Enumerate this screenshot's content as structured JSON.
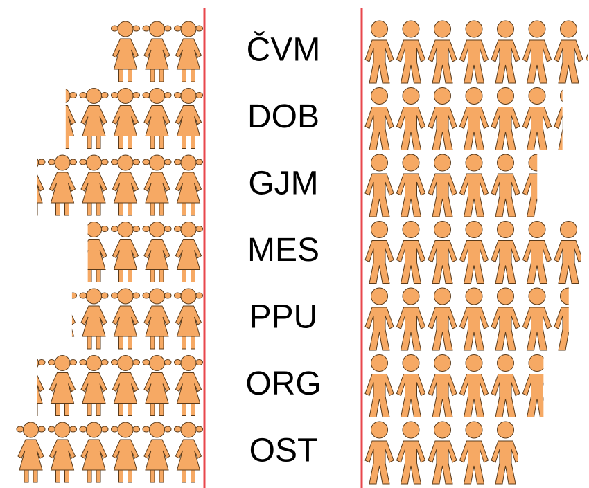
{
  "chart_data": {
    "type": "pictogram-butterfly",
    "categories": [
      "ČVM",
      "DOB",
      "GJM",
      "MES",
      "PPU",
      "ORG",
      "OST"
    ],
    "series": [
      {
        "color": "#f6a964",
        "values": [
          3.0,
          4.4,
          5.3,
          3.7,
          4.2,
          5.3,
          6.0
        ]
      },
      {
        "color": "#f6a964",
        "values": [
          7.1,
          6.3,
          5.5,
          6.9,
          6.5,
          5.7,
          4.9
        ]
      }
    ]
  }
}
